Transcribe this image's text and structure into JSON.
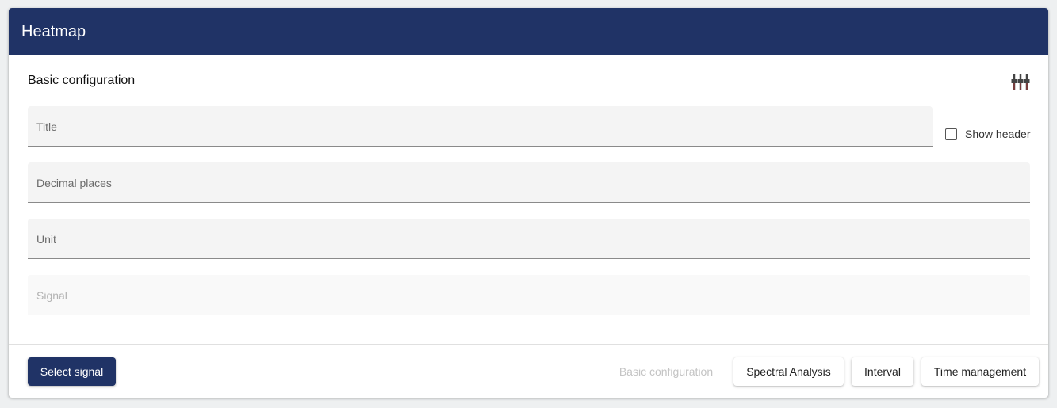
{
  "header": {
    "title": "Heatmap"
  },
  "section": {
    "title": "Basic configuration",
    "icon": "tune-icon"
  },
  "fields": {
    "title": "Title",
    "decimal_places": "Decimal places",
    "unit": "Unit",
    "signal": "Signal"
  },
  "show_header": {
    "label": "Show header",
    "checked": false
  },
  "footer": {
    "select_signal": "Select signal",
    "tabs": [
      "Basic configuration",
      "Spectral Analysis",
      "Interval",
      "Time management"
    ]
  },
  "colors": {
    "brand": "#203366"
  }
}
